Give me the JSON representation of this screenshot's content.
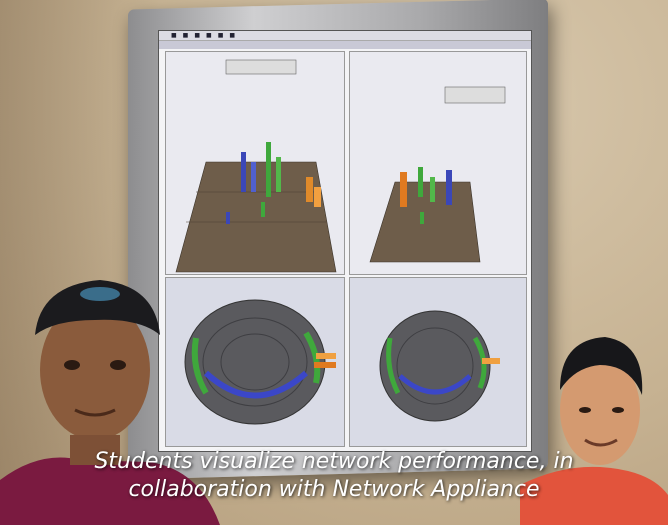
{
  "photo": {
    "caption_line1": "Students visualize network performance, in",
    "caption_line2": "collaboration with Network Appliance"
  }
}
